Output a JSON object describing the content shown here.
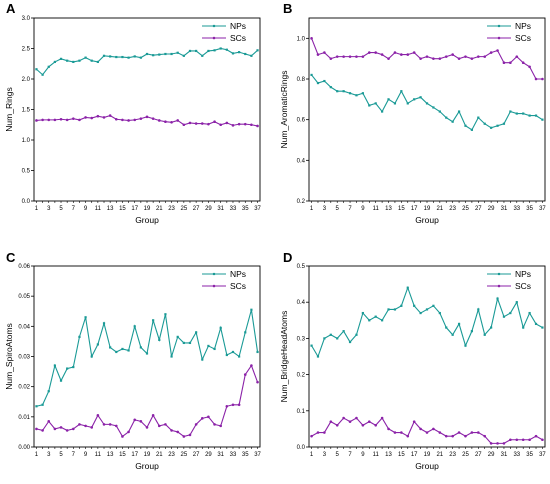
{
  "colors": {
    "np": "#1a9a96",
    "sc": "#8b22a8",
    "axis": "#000000"
  },
  "chart_data": [
    {
      "type": "line",
      "panel": "A",
      "xlabel": "Group",
      "ylabel": "Num_Rings",
      "ylim": [
        0.0,
        3.0
      ],
      "yticks": [
        "0.0",
        "0.5",
        "1.0",
        "1.5",
        "2.0",
        "2.5",
        "3.0"
      ],
      "xticks": [
        "1",
        "3",
        "5",
        "7",
        "9",
        "11",
        "13",
        "15",
        "17",
        "19",
        "21",
        "23",
        "25",
        "27",
        "29",
        "31",
        "33",
        "35",
        "37"
      ],
      "legend_position": "top-right",
      "x": [
        1,
        2,
        3,
        4,
        5,
        6,
        7,
        8,
        9,
        10,
        11,
        12,
        13,
        14,
        15,
        16,
        17,
        18,
        19,
        20,
        21,
        22,
        23,
        24,
        25,
        26,
        27,
        28,
        29,
        30,
        31,
        32,
        33,
        34,
        35,
        36,
        37
      ],
      "series": [
        {
          "name": "NPs",
          "values": [
            2.16,
            2.07,
            2.2,
            2.28,
            2.33,
            2.3,
            2.28,
            2.3,
            2.35,
            2.3,
            2.28,
            2.38,
            2.37,
            2.36,
            2.36,
            2.35,
            2.37,
            2.35,
            2.41,
            2.39,
            2.4,
            2.41,
            2.41,
            2.43,
            2.38,
            2.46,
            2.46,
            2.38,
            2.46,
            2.47,
            2.5,
            2.48,
            2.42,
            2.44,
            2.41,
            2.38,
            2.47
          ]
        },
        {
          "name": "SCs",
          "values": [
            1.32,
            1.33,
            1.33,
            1.33,
            1.34,
            1.33,
            1.35,
            1.33,
            1.37,
            1.36,
            1.39,
            1.37,
            1.4,
            1.34,
            1.33,
            1.32,
            1.33,
            1.35,
            1.38,
            1.35,
            1.32,
            1.3,
            1.29,
            1.32,
            1.25,
            1.28,
            1.27,
            1.27,
            1.26,
            1.3,
            1.25,
            1.28,
            1.24,
            1.26,
            1.26,
            1.25,
            1.23
          ]
        }
      ]
    },
    {
      "type": "line",
      "panel": "B",
      "xlabel": "Group",
      "ylabel": "Num_AromaticRings",
      "ylim": [
        0.2,
        1.1
      ],
      "yticks": [
        "0.2",
        "0.4",
        "0.6",
        "0.8",
        "1.0"
      ],
      "xticks": [
        "1",
        "3",
        "5",
        "7",
        "9",
        "11",
        "13",
        "15",
        "17",
        "19",
        "21",
        "23",
        "25",
        "27",
        "29",
        "31",
        "33",
        "35",
        "37"
      ],
      "legend_position": "top-right",
      "x": [
        1,
        2,
        3,
        4,
        5,
        6,
        7,
        8,
        9,
        10,
        11,
        12,
        13,
        14,
        15,
        16,
        17,
        18,
        19,
        20,
        21,
        22,
        23,
        24,
        25,
        26,
        27,
        28,
        29,
        30,
        31,
        32,
        33,
        34,
        35,
        36,
        37
      ],
      "series": [
        {
          "name": "NPs",
          "values": [
            0.82,
            0.78,
            0.79,
            0.76,
            0.74,
            0.74,
            0.73,
            0.72,
            0.73,
            0.67,
            0.68,
            0.64,
            0.7,
            0.68,
            0.74,
            0.68,
            0.7,
            0.71,
            0.68,
            0.66,
            0.64,
            0.61,
            0.59,
            0.64,
            0.57,
            0.55,
            0.61,
            0.58,
            0.56,
            0.57,
            0.58,
            0.64,
            0.63,
            0.63,
            0.62,
            0.62,
            0.6
          ]
        },
        {
          "name": "SCs",
          "values": [
            1.0,
            0.92,
            0.93,
            0.9,
            0.91,
            0.91,
            0.91,
            0.91,
            0.91,
            0.93,
            0.93,
            0.92,
            0.9,
            0.93,
            0.92,
            0.92,
            0.93,
            0.9,
            0.91,
            0.9,
            0.9,
            0.91,
            0.92,
            0.9,
            0.91,
            0.9,
            0.91,
            0.91,
            0.93,
            0.94,
            0.88,
            0.88,
            0.91,
            0.88,
            0.86,
            0.8,
            0.8
          ]
        }
      ]
    },
    {
      "type": "line",
      "panel": "C",
      "xlabel": "Group",
      "ylabel": "Num_SpiroAtoms",
      "ylim": [
        0.0,
        0.06
      ],
      "yticks": [
        "0.00",
        "0.01",
        "0.02",
        "0.03",
        "0.04",
        "0.05",
        "0.06"
      ],
      "xticks": [
        "1",
        "3",
        "5",
        "7",
        "9",
        "11",
        "13",
        "15",
        "17",
        "19",
        "21",
        "23",
        "25",
        "27",
        "29",
        "31",
        "33",
        "35",
        "37"
      ],
      "legend_position": "top-right",
      "x": [
        1,
        2,
        3,
        4,
        5,
        6,
        7,
        8,
        9,
        10,
        11,
        12,
        13,
        14,
        15,
        16,
        17,
        18,
        19,
        20,
        21,
        22,
        23,
        24,
        25,
        26,
        27,
        28,
        29,
        30,
        31,
        32,
        33,
        34,
        35,
        36,
        37
      ],
      "series": [
        {
          "name": "NPs",
          "values": [
            0.0135,
            0.014,
            0.0185,
            0.027,
            0.022,
            0.026,
            0.0265,
            0.0365,
            0.043,
            0.03,
            0.034,
            0.041,
            0.033,
            0.0315,
            0.0325,
            0.032,
            0.04,
            0.033,
            0.031,
            0.042,
            0.0355,
            0.044,
            0.03,
            0.0365,
            0.0345,
            0.0345,
            0.038,
            0.029,
            0.0335,
            0.0325,
            0.0395,
            0.0305,
            0.0315,
            0.03,
            0.038,
            0.0455,
            0.0315
          ]
        },
        {
          "name": "SCs",
          "values": [
            0.006,
            0.0055,
            0.0085,
            0.006,
            0.0065,
            0.0055,
            0.006,
            0.0075,
            0.007,
            0.0065,
            0.0105,
            0.0075,
            0.0075,
            0.007,
            0.0035,
            0.005,
            0.009,
            0.0085,
            0.0065,
            0.0105,
            0.007,
            0.0075,
            0.0055,
            0.005,
            0.0035,
            0.004,
            0.0075,
            0.0095,
            0.01,
            0.0075,
            0.007,
            0.0135,
            0.014,
            0.014,
            0.024,
            0.027,
            0.0215
          ]
        }
      ]
    },
    {
      "type": "line",
      "panel": "D",
      "xlabel": "Group",
      "ylabel": "Num_BridgeHeadAtoms",
      "ylim": [
        0.0,
        0.5
      ],
      "yticks": [
        "0.0",
        "0.1",
        "0.2",
        "0.3",
        "0.4",
        "0.5"
      ],
      "xticks": [
        "1",
        "3",
        "5",
        "7",
        "9",
        "11",
        "13",
        "15",
        "17",
        "19",
        "21",
        "23",
        "25",
        "27",
        "29",
        "31",
        "33",
        "35",
        "37"
      ],
      "legend_position": "top-right",
      "x": [
        1,
        2,
        3,
        4,
        5,
        6,
        7,
        8,
        9,
        10,
        11,
        12,
        13,
        14,
        15,
        16,
        17,
        18,
        19,
        20,
        21,
        22,
        23,
        24,
        25,
        26,
        27,
        28,
        29,
        30,
        31,
        32,
        33,
        34,
        35,
        36,
        37
      ],
      "series": [
        {
          "name": "NPs",
          "values": [
            0.28,
            0.25,
            0.3,
            0.31,
            0.3,
            0.32,
            0.29,
            0.31,
            0.37,
            0.35,
            0.36,
            0.35,
            0.38,
            0.38,
            0.39,
            0.44,
            0.39,
            0.37,
            0.38,
            0.39,
            0.37,
            0.33,
            0.31,
            0.34,
            0.28,
            0.32,
            0.38,
            0.31,
            0.33,
            0.41,
            0.36,
            0.37,
            0.4,
            0.33,
            0.37,
            0.34,
            0.33
          ]
        },
        {
          "name": "SCs",
          "values": [
            0.03,
            0.04,
            0.04,
            0.07,
            0.06,
            0.08,
            0.07,
            0.08,
            0.06,
            0.07,
            0.06,
            0.08,
            0.05,
            0.04,
            0.04,
            0.03,
            0.07,
            0.05,
            0.04,
            0.05,
            0.04,
            0.03,
            0.03,
            0.04,
            0.03,
            0.04,
            0.04,
            0.03,
            0.01,
            0.01,
            0.01,
            0.02,
            0.02,
            0.02,
            0.02,
            0.03,
            0.02
          ]
        }
      ]
    }
  ]
}
